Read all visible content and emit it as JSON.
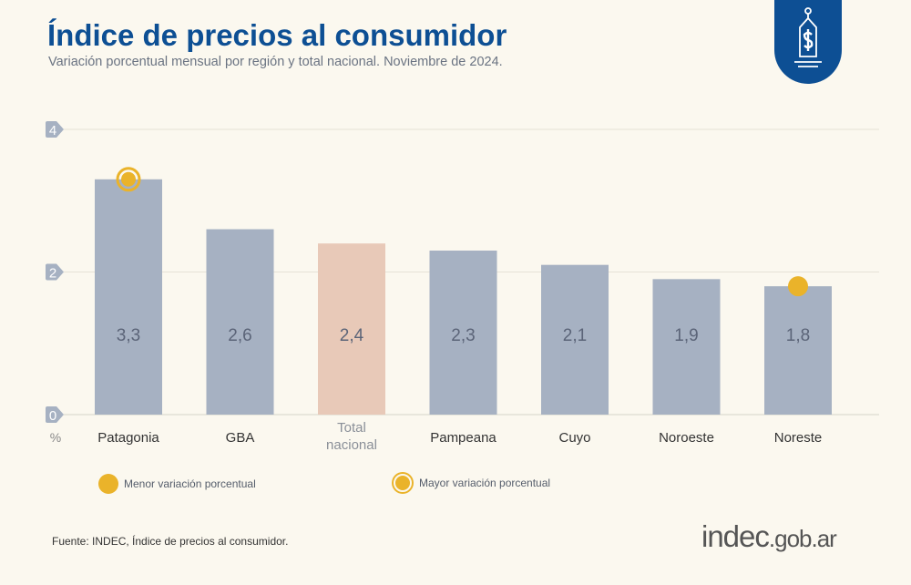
{
  "header": {
    "title": "Índice de precios al consumidor",
    "subtitle": "Variación porcentual mensual por región y total nacional. Noviembre de 2024."
  },
  "badge_icon": "price-tag-dollar-icon",
  "chart_data": {
    "type": "bar",
    "categories": [
      "Patagonia",
      "GBA",
      "Total nacional",
      "Pampeana",
      "Cuyo",
      "Noroeste",
      "Noreste"
    ],
    "values": [
      3.3,
      2.6,
      2.4,
      2.3,
      2.1,
      1.9,
      1.8
    ],
    "data_labels": [
      "3,3",
      "2,6",
      "2,4",
      "2,3",
      "2,1",
      "1,9",
      "1,8"
    ],
    "ylim": [
      0,
      4
    ],
    "yticks": [
      0,
      2,
      4
    ],
    "ylabel": "%",
    "grid": true,
    "colors": {
      "bar": "#a6b1c2",
      "highlight": "#e8c9b8",
      "marker": "#eab32a"
    },
    "highlight_category": "Total nacional",
    "markers": {
      "max": "Patagonia",
      "min": "Noreste"
    }
  },
  "legend": {
    "min_label": "Menor variación porcentual",
    "max_label": "Mayor variación porcentual"
  },
  "footer": {
    "source": "Fuente: INDEC, Índice de precios al consumidor.",
    "logo": "indec.gob.ar"
  }
}
